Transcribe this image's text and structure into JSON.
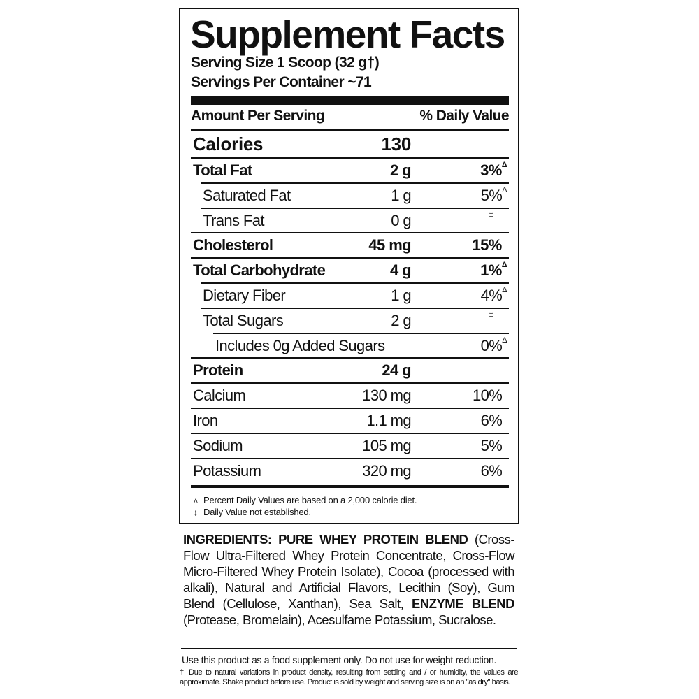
{
  "title": "Supplement Facts",
  "serving_size": "Serving Size 1 Scoop (32 g†)",
  "servings_per_container": "Servings Per Container ~71",
  "header": {
    "amount": "Amount Per Serving",
    "daily_value": "% Daily Value"
  },
  "calories": {
    "label": "Calories",
    "value": "130"
  },
  "nutrients": [
    {
      "label": "Total Fat",
      "amount": "2 g",
      "dv": "3%",
      "mark": "Δ",
      "bold": true,
      "indent": 0
    },
    {
      "label": "Saturated Fat",
      "amount": "1 g",
      "dv": "5%",
      "mark": "Δ",
      "bold": false,
      "indent": 1
    },
    {
      "label": "Trans Fat",
      "amount": "0 g",
      "dv": "",
      "mark": "‡",
      "bold": false,
      "indent": 1
    },
    {
      "label": "Cholesterol",
      "amount": "45 mg",
      "dv": "15%",
      "mark": "",
      "bold": true,
      "indent": 0
    },
    {
      "label": "Total Carbohydrate",
      "amount": "4 g",
      "dv": "1%",
      "mark": "Δ",
      "bold": true,
      "indent": 0
    },
    {
      "label": "Dietary Fiber",
      "amount": "1 g",
      "dv": "4%",
      "mark": "Δ",
      "bold": false,
      "indent": 1
    },
    {
      "label": "Total Sugars",
      "amount": "2 g",
      "dv": "",
      "mark": "‡",
      "bold": false,
      "indent": 1
    },
    {
      "label": "Includes 0g Added Sugars",
      "amount": "",
      "dv": "0%",
      "mark": "Δ",
      "bold": false,
      "indent": 2
    },
    {
      "label": "Protein",
      "amount": "24 g",
      "dv": "",
      "mark": "",
      "bold": true,
      "indent": 0
    },
    {
      "label": "Calcium",
      "amount": "130 mg",
      "dv": "10%",
      "mark": "",
      "bold": false,
      "indent": 0
    },
    {
      "label": "Iron",
      "amount": "1.1 mg",
      "dv": "6%",
      "mark": "",
      "bold": false,
      "indent": 0
    },
    {
      "label": "Sodium",
      "amount": "105 mg",
      "dv": "5%",
      "mark": "",
      "bold": false,
      "indent": 0
    },
    {
      "label": "Potassium",
      "amount": "320 mg",
      "dv": "6%",
      "mark": "",
      "bold": false,
      "indent": 0
    }
  ],
  "footnotes": [
    {
      "symbol": "Δ",
      "text": "Percent Daily Values are based on a 2,000 calorie diet."
    },
    {
      "symbol": "‡",
      "text": "Daily Value not established."
    }
  ],
  "ingredients": {
    "label": "INGREDIENTS:",
    "blend1_name": "PURE WHEY PROTEIN BLEND",
    "blend1_text": " (Cross-Flow Ultra-Filtered Whey Protein Concentrate, Cross-Flow Micro-Filtered Whey Protein Isolate), Cocoa (processed with alkali), Natural and Artificial Flavors, Lecithin (Soy), Gum Blend (Cellulose, Xanthan), Sea Salt, ",
    "blend2_name": "ENZYME BLEND",
    "blend2_text": " (Protease, Bromelain), Acesulfame Potassium, Sucralose."
  },
  "usage_note": "Use this product as a food supplement only. Do not use for weight reduction.",
  "disclaimer": "† Due to natural variations in product density, resulting from settling and / or humidity, the values are approximate. Shake product before use. Product is sold by weight and serving size is on an \"as dry\" basis."
}
